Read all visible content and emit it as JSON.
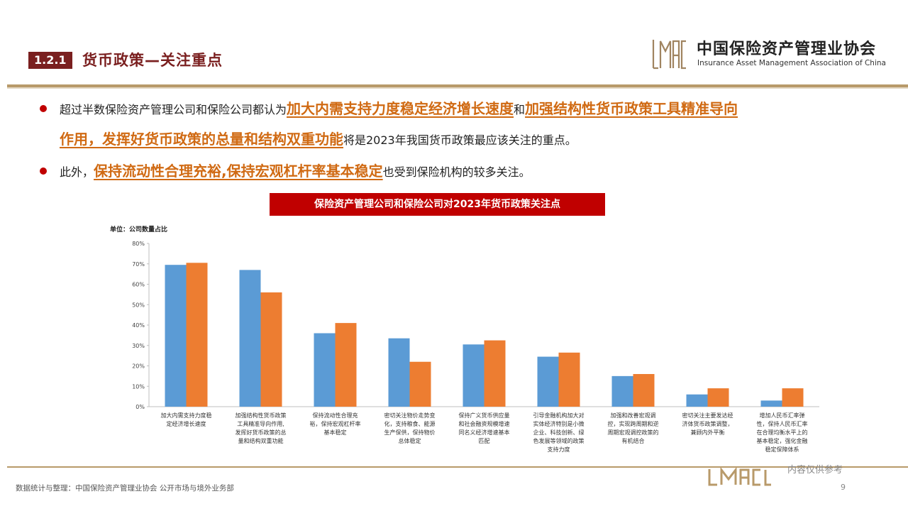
{
  "header": {
    "section_number": "1.2.1",
    "section_title": "货币政策—关注重点",
    "org_name_cn": "中国保险资产管理业协会",
    "org_name_en": "Insurance Asset Management Association of China"
  },
  "bullets": [
    {
      "segments": [
        {
          "text": " 超过半数保险资产管理公司和保险公司都认为",
          "highlight": false
        },
        {
          "text": "加大内需支持力度稳定经济增长速度",
          "highlight": true
        },
        {
          "text": "和",
          "highlight": false
        },
        {
          "text": "加强结构性货币政策工具精准导向",
          "highlight": true
        }
      ],
      "line2": [
        {
          "text": "作用，发挥好货币政策的总量和结构双重功能",
          "highlight": true
        },
        {
          "text": "将是2023年我国货币政策最应该关注的重点。",
          "highlight": false
        }
      ]
    },
    {
      "segments": [
        {
          "text": " 此外，",
          "highlight": false
        },
        {
          "text": "保持流动性合理充裕,保持宏观杠杆率基本稳定",
          "highlight": true
        },
        {
          "text": "也受到保险机构的较多关注。",
          "highlight": false
        }
      ]
    }
  ],
  "chart_data": {
    "type": "bar",
    "title": "保险资产管理公司和保险公司对2023年货币政策关注点",
    "unit_label": "单位：公司数量占比",
    "ylim": [
      0,
      80
    ],
    "yticks": [
      "0%",
      "10%",
      "20%",
      "30%",
      "40%",
      "50%",
      "60%",
      "70%",
      "80%"
    ],
    "grid": false,
    "legend": "none",
    "categories": [
      [
        "加大内需支持力度稳",
        "定经济增长速度"
      ],
      [
        "加强结构性货币政策",
        "工具精准导向作用,",
        "发挥好货币政策的总",
        "量和结构双重功能"
      ],
      [
        "保持流动性合理充",
        "裕，保持宏观杠杆率",
        "基本稳定"
      ],
      [
        "密切关注物价走势变",
        "化，支持粮食、能源",
        "生产保供，保持物价",
        "总体稳定"
      ],
      [
        "保持广义货币供应量",
        "和社会融资规模增速",
        "同名义经济增速基本",
        "匹配"
      ],
      [
        "引导金融机构加大对",
        "实体经济特别是小微",
        "企业、科技创新、绿",
        "色发展等领域的政策",
        "支持力度"
      ],
      [
        "加强和改善宏观调",
        "控，实现跨周期和逆",
        "周期宏观调控政策的",
        "有机结合"
      ],
      [
        "密切关注主要发达经",
        "济体货币政策调整，",
        "兼顾内外平衡"
      ],
      [
        "增加人民币汇率弹",
        "性，保持人民币汇率",
        "在合理均衡水平上的",
        "基本稳定，强化金融",
        "稳定保障体系"
      ]
    ],
    "series": [
      {
        "color": "#5b9bd5",
        "values": [
          69.5,
          67,
          36,
          33.5,
          30.5,
          24.5,
          15,
          6,
          3
        ]
      },
      {
        "color": "#ed7d31",
        "values": [
          70.5,
          56,
          41,
          22,
          32.5,
          26.5,
          16,
          9,
          9
        ]
      }
    ]
  },
  "footer": {
    "source": "数据统计与整理：中国保险资产管理业协会 公开市场与境外业务部",
    "disclaimer": "内容仅供参考",
    "page": "9"
  },
  "colors": {
    "brand_red": "#c00000",
    "brand_dark_red": "#7a1f1f",
    "accent_orange": "#d06a13",
    "gold": "#b89a6a"
  }
}
